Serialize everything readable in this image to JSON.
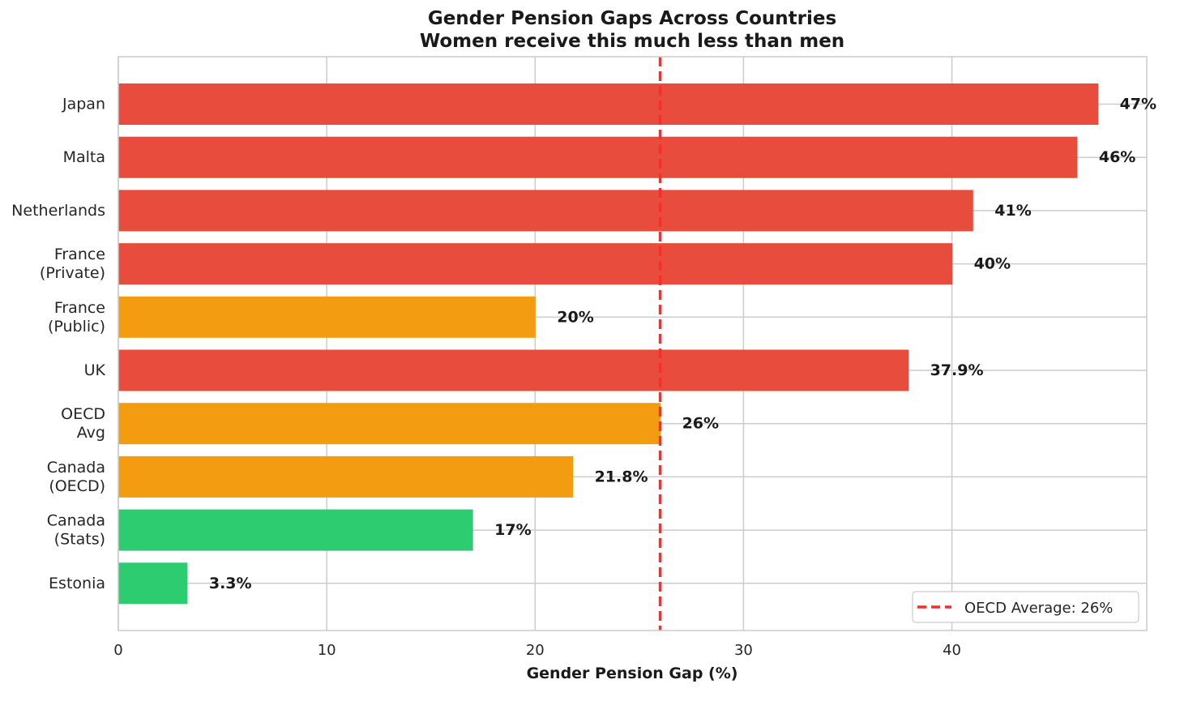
{
  "chart_data": {
    "type": "bar",
    "orientation": "horizontal",
    "title": "Gender Pension Gaps Across Countries",
    "subtitle": "Women receive this much less than men",
    "xlabel": "Gender Pension Gap (%)",
    "ylabel": "",
    "xlim": [
      0,
      49.35
    ],
    "xticks": [
      0,
      10,
      20,
      30,
      40
    ],
    "grid": true,
    "categories": [
      [
        "Japan"
      ],
      [
        "Malta"
      ],
      [
        "Netherlands"
      ],
      [
        "France",
        "(Private)"
      ],
      [
        "France",
        "(Public)"
      ],
      [
        "UK"
      ],
      [
        "OECD",
        "Avg"
      ],
      [
        "Canada",
        "(OECD)"
      ],
      [
        "Canada",
        "(Stats)"
      ],
      [
        "Estonia"
      ]
    ],
    "values": [
      47,
      46,
      41,
      40,
      20,
      37.9,
      26,
      21.8,
      17,
      3.3
    ],
    "value_labels": [
      "47%",
      "46%",
      "41%",
      "40%",
      "20%",
      "37.9%",
      "26%",
      "21.8%",
      "17%",
      "3.3%"
    ],
    "bar_colors": [
      "#e74c3c",
      "#e74c3c",
      "#e74c3c",
      "#e74c3c",
      "#f39c12",
      "#e74c3c",
      "#f39c12",
      "#f39c12",
      "#2ecc71",
      "#2ecc71"
    ],
    "reference_line": {
      "value": 26,
      "label": "OECD Average: 26%",
      "color": "#ff2a2a",
      "style": "dashed"
    },
    "legend_position": "lower-right"
  }
}
